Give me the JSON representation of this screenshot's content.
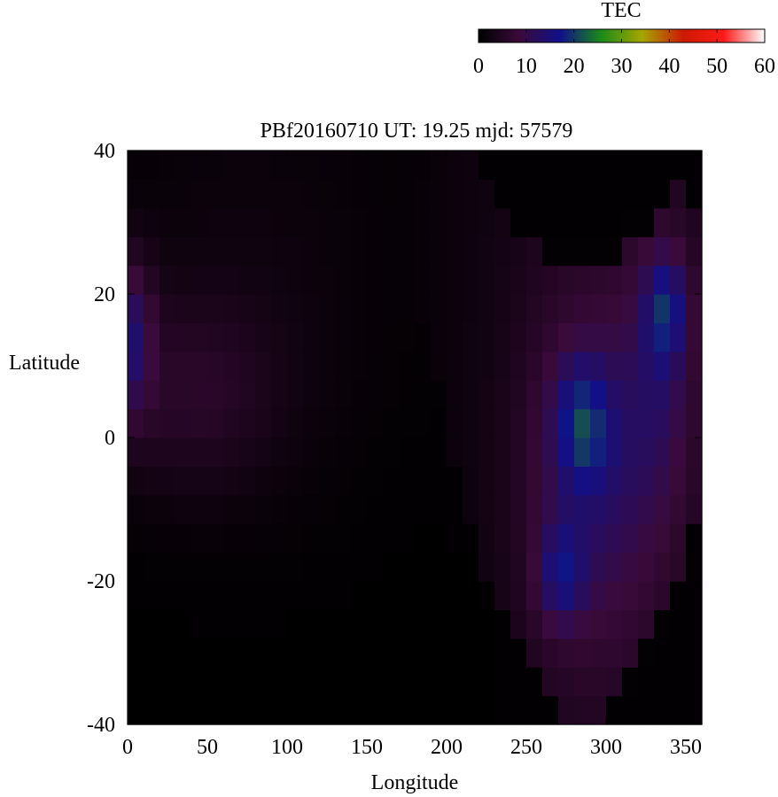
{
  "chart_data": {
    "type": "heatmap",
    "title": "PBf20160710  UT: 19.25  mjd: 57579",
    "xlabel": "Longitude",
    "ylabel": "Latitude",
    "xlim": [
      0,
      360
    ],
    "ylim": [
      -40,
      40
    ],
    "xticks": [
      "0",
      "50",
      "100",
      "150",
      "200",
      "250",
      "300",
      "350"
    ],
    "yticks": [
      "-40",
      "-20",
      "0",
      "20",
      "40"
    ],
    "colorbar": {
      "label": "TEC",
      "range": [
        0,
        60
      ],
      "ticks": [
        "0",
        "10",
        "20",
        "30",
        "40",
        "50",
        "60"
      ],
      "colors": [
        "#000000",
        "#3a0a3a",
        "#10108a",
        "#1a8a1a",
        "#a6a600",
        "#cc1a00",
        "#ff1a1a",
        "#ffffff"
      ]
    },
    "grid": false,
    "cells": {
      "lon_step": 10,
      "lat_step": 4,
      "features": [
        {
          "kind": "equatorial-anomaly",
          "lon": [
            255,
            300
          ],
          "lat": [
            -22,
            5
          ],
          "peak_tec": 23
        },
        {
          "kind": "northern-crest",
          "lon": [
            320,
            345
          ],
          "lat": [
            10,
            24
          ],
          "peak_tec": 24
        },
        {
          "kind": "night-low",
          "lon": [
            10,
            170
          ],
          "lat": [
            -40,
            0
          ],
          "peak_tec": 1
        },
        {
          "kind": "northern-low",
          "lon": [
            230,
            320
          ],
          "lat": [
            25,
            40
          ],
          "peak_tec": 1
        },
        {
          "kind": "western-enhancement",
          "lon": [
            0,
            15
          ],
          "lat": [
            5,
            22
          ],
          "peak_tec": 15
        }
      ]
    }
  }
}
